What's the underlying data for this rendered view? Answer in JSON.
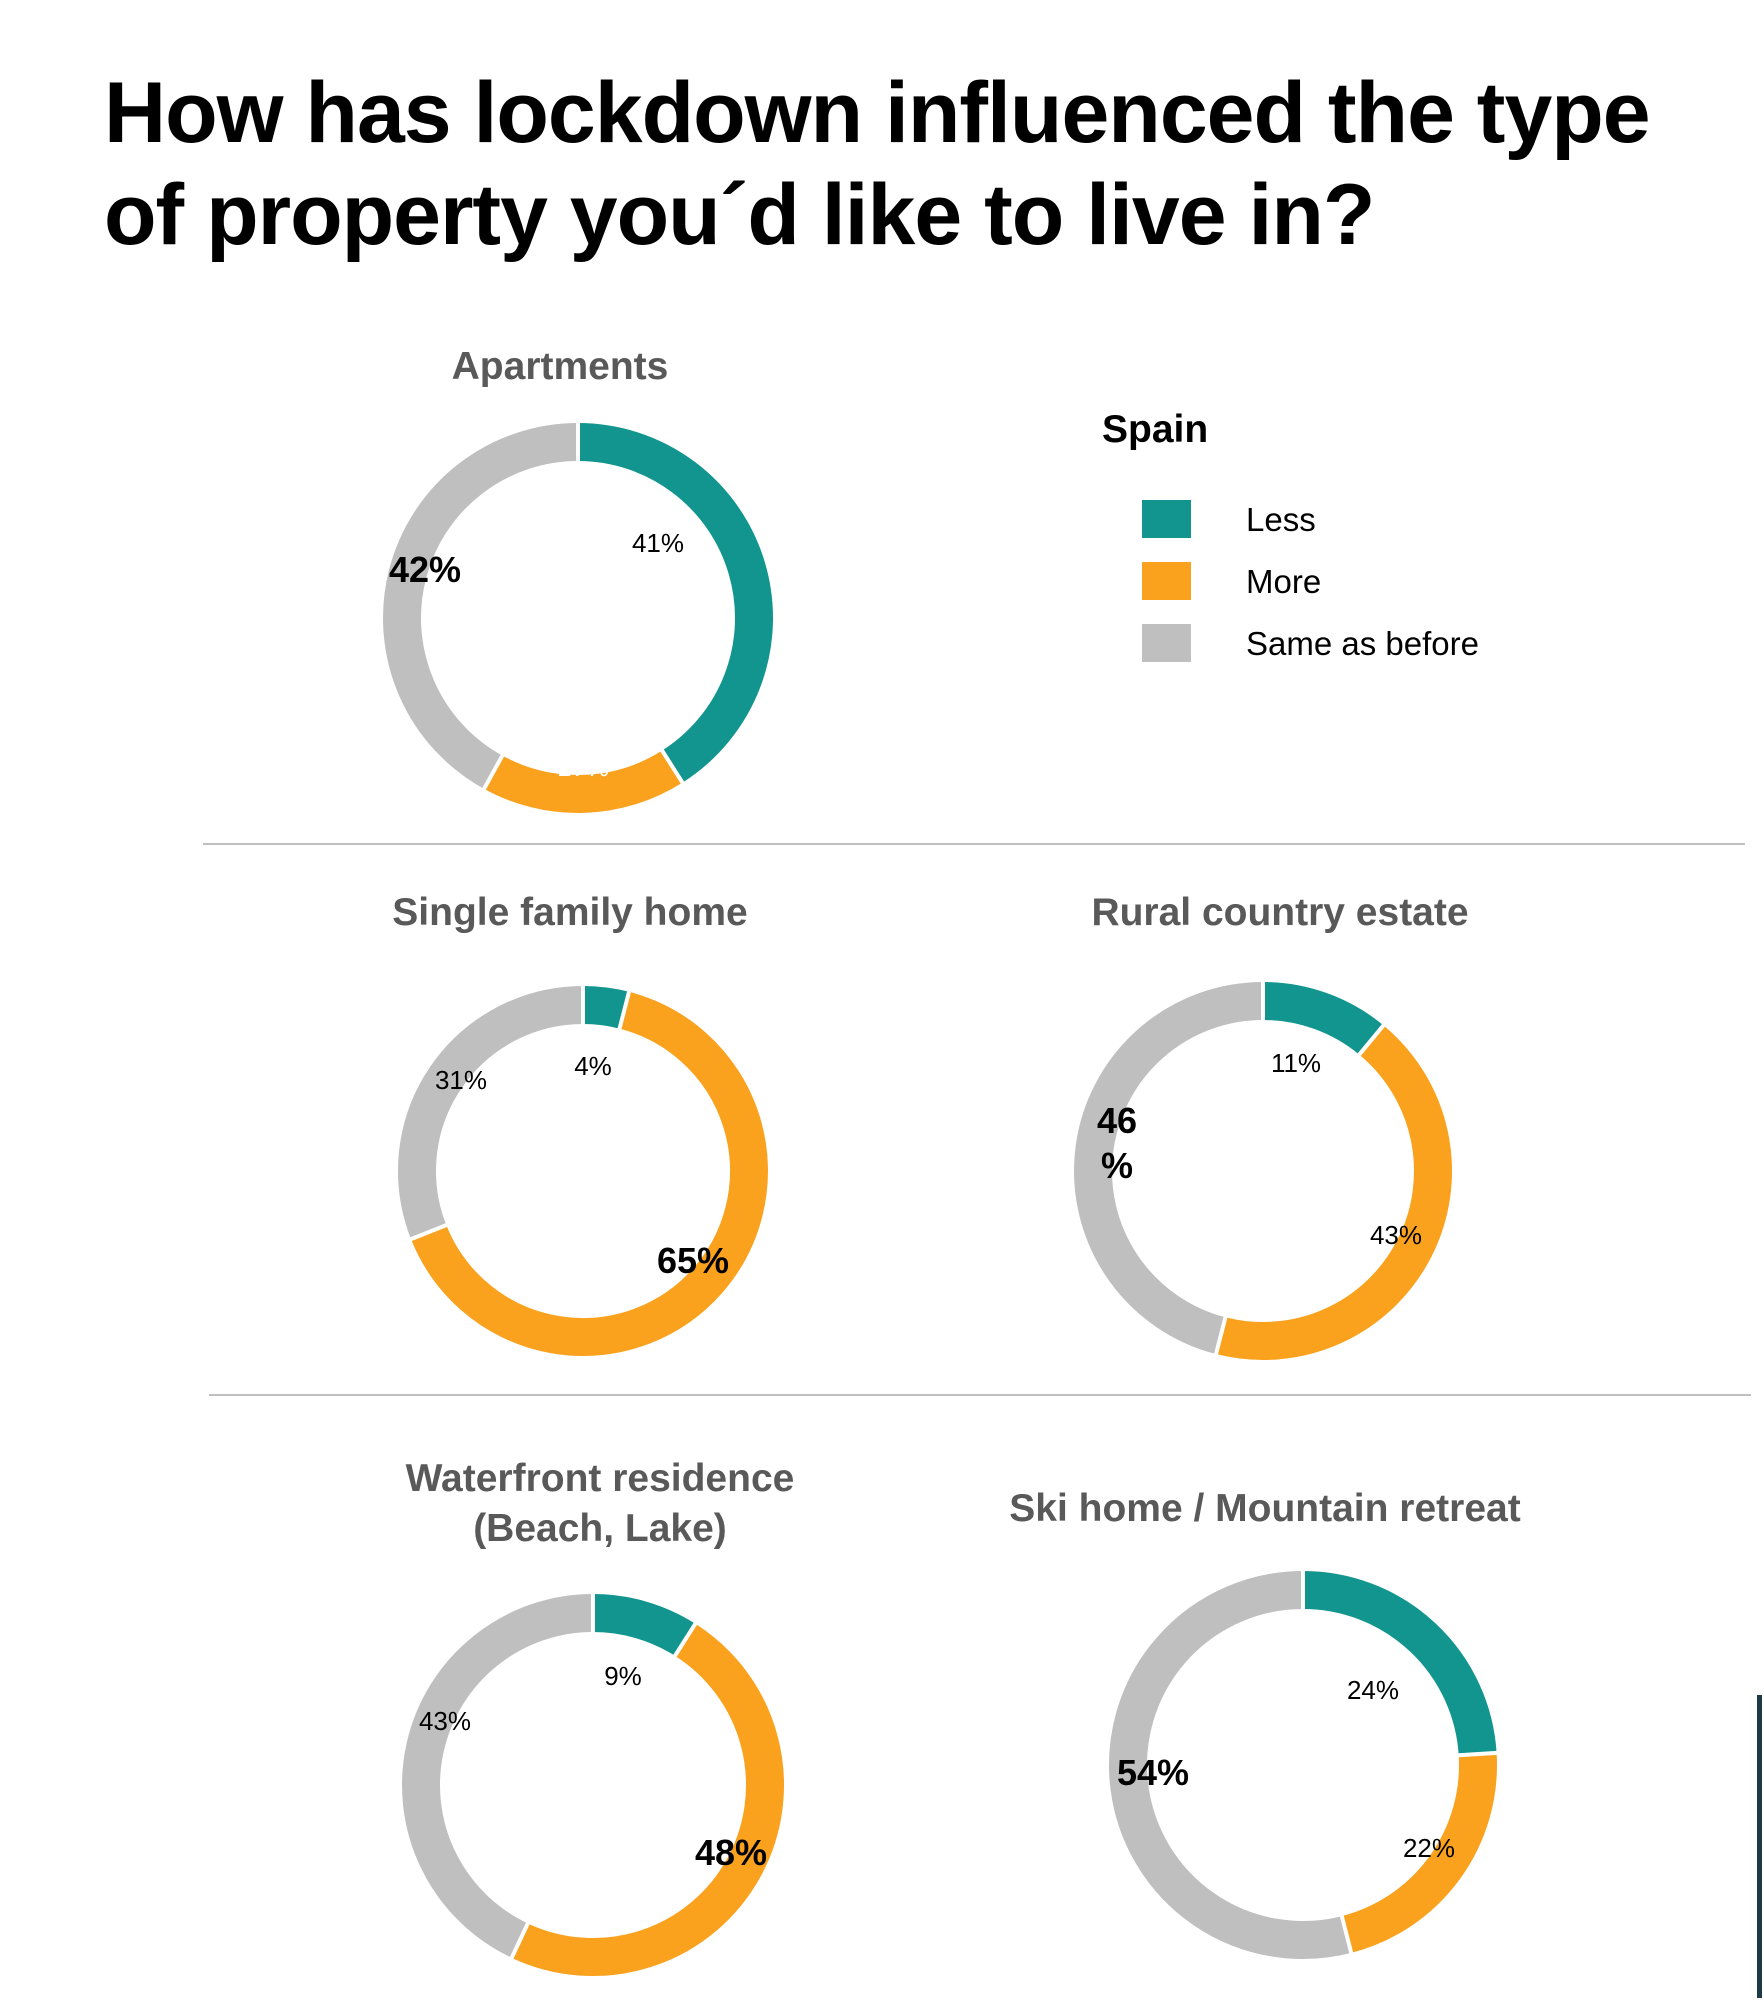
{
  "page": {
    "title_line1": "How has lockdown influenced the type",
    "title_line2": "of property you´d like to live in?"
  },
  "legend": {
    "title": "Spain",
    "items": [
      {
        "label": "Less",
        "color": "#12958E"
      },
      {
        "label": "More",
        "color": "#FAA21E"
      },
      {
        "label": "Same as before",
        "color": "#BFBFBF"
      }
    ]
  },
  "chart_data": [
    {
      "type": "pie",
      "title": "Apartments",
      "categories": [
        "Less",
        "More",
        "Same as before"
      ],
      "values": [
        41,
        17,
        42
      ],
      "labels": [
        "41%",
        "17%",
        "42%"
      ],
      "colors": [
        "#12958E",
        "#FAA21E",
        "#BFBFBF"
      ]
    },
    {
      "type": "pie",
      "title": "Single family home",
      "categories": [
        "Less",
        "More",
        "Same as before"
      ],
      "values": [
        4,
        65,
        31
      ],
      "labels": [
        "4%",
        "65%",
        "31%"
      ],
      "colors": [
        "#12958E",
        "#FAA21E",
        "#BFBFBF"
      ]
    },
    {
      "type": "pie",
      "title": "Rural country estate",
      "categories": [
        "Less",
        "More",
        "Same as before"
      ],
      "values": [
        11,
        43,
        46
      ],
      "labels": [
        "11%",
        "43%",
        "46\n%"
      ],
      "colors": [
        "#12958E",
        "#FAA21E",
        "#BFBFBF"
      ]
    },
    {
      "type": "pie",
      "title_lines": [
        "Waterfront residence",
        "(Beach, Lake)"
      ],
      "categories": [
        "Less",
        "More",
        "Same as before"
      ],
      "values": [
        9,
        48,
        43
      ],
      "labels": [
        "9%",
        "48%",
        "43%"
      ],
      "colors": [
        "#12958E",
        "#FAA21E",
        "#BFBFBF"
      ]
    },
    {
      "type": "pie",
      "title": "Ski home / Mountain retreat",
      "categories": [
        "Less",
        "More",
        "Same as before"
      ],
      "values": [
        24,
        22,
        54
      ],
      "labels": [
        "24%",
        "22%",
        "54%"
      ],
      "colors": [
        "#12958E",
        "#FAA21E",
        "#BFBFBF"
      ]
    }
  ]
}
